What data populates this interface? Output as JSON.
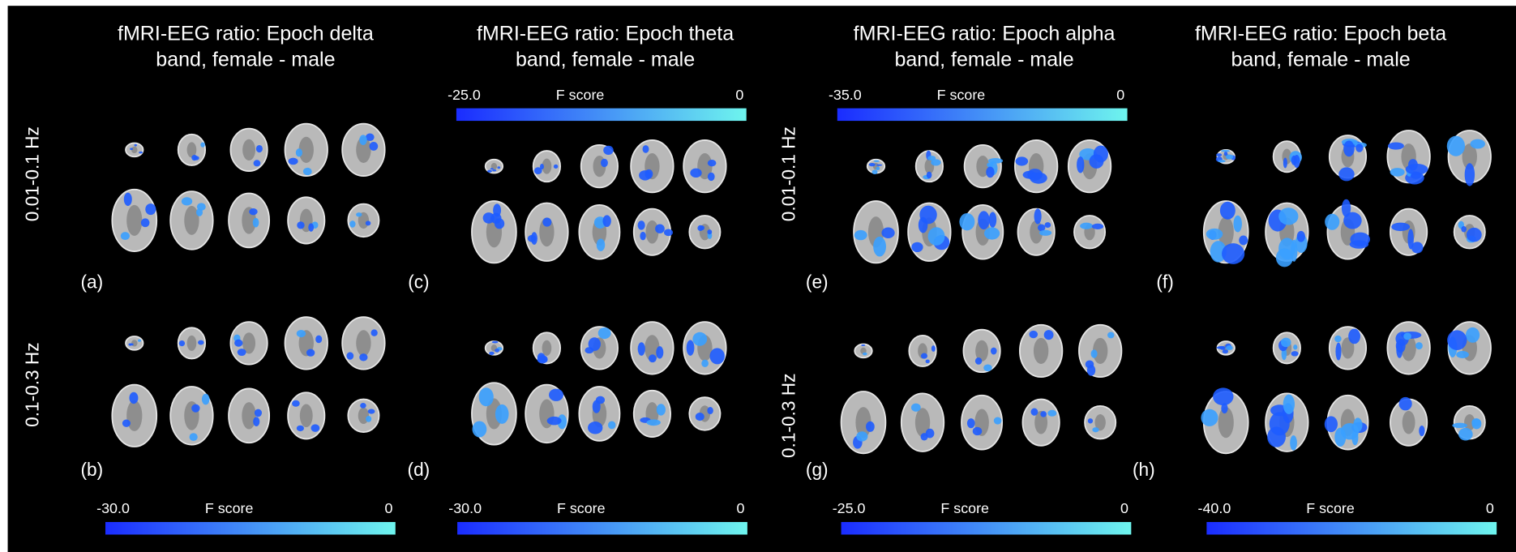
{
  "columns": [
    {
      "title": [
        "fMRI-EEG ratio: Epoch delta",
        "band, female - male"
      ]
    },
    {
      "title": [
        "fMRI-EEG ratio: Epoch theta",
        "band, female - male"
      ]
    },
    {
      "title": [
        "fMRI-EEG ratio: Epoch alpha",
        "band, female - male"
      ]
    },
    {
      "title": [
        "fMRI-EEG ratio: Epoch beta",
        "band, female - male"
      ]
    }
  ],
  "row_labels": {
    "left": [
      "0.01-0.1 Hz",
      "0.1-0.3 Hz"
    ],
    "middle": [
      "0.01-0.1 Hz",
      "0.1-0.3 Hz"
    ]
  },
  "panel_labels": [
    "(a)",
    "(b)",
    "(c)",
    "(d)",
    "(e)",
    "(f)",
    "(g)",
    "(h)"
  ],
  "colorbars": [
    {
      "min": "-25.0",
      "label": "F score",
      "max": "0"
    },
    {
      "min": "-35.0",
      "label": "F score",
      "max": "0"
    },
    {
      "min": "-30.0",
      "label": "F score",
      "max": "0"
    },
    {
      "min": "-30.0",
      "label": "F score",
      "max": "0"
    },
    {
      "min": "-25.0",
      "label": "F score",
      "max": "0"
    },
    {
      "min": "-40.0",
      "label": "F score",
      "max": "0"
    }
  ]
}
